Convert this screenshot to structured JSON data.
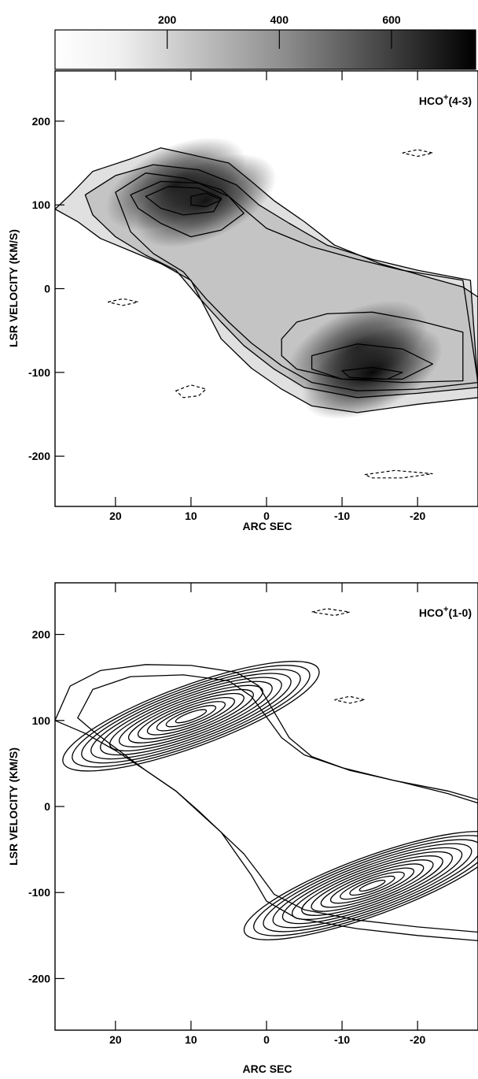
{
  "colorbar": {
    "ticks": [
      200,
      400,
      600
    ],
    "range": [
      0,
      750
    ],
    "gradient": "white-to-black"
  },
  "chart_data": [
    {
      "type": "heatmap",
      "panel": "top",
      "label": "HCO+(4-3)",
      "label_main": "HCO",
      "label_sup": "+",
      "label_trans": "(4-3)",
      "xlabel": "ARC SEC",
      "ylabel": "LSR VELOCITY (KM/S)",
      "xlim": [
        28,
        -28
      ],
      "ylim": [
        -260,
        260
      ],
      "xticks": [
        20,
        10,
        0,
        -10,
        -20
      ],
      "yticks": [
        200,
        100,
        0,
        -100,
        -200
      ],
      "greyscale": true,
      "emission_peaks": [
        {
          "x": 8,
          "y": 105,
          "level": 700
        },
        {
          "x": 12,
          "y": 125,
          "level": 650
        },
        {
          "x": -14,
          "y": -100,
          "level": 750
        },
        {
          "x": -12,
          "y": -70,
          "level": 600
        }
      ],
      "contours": [
        {
          "level": 1,
          "points": [
            [
              26,
              112
            ],
            [
              23,
              140
            ],
            [
              18,
              155
            ],
            [
              14,
              168
            ],
            [
              10,
              160
            ],
            [
              5,
              150
            ],
            [
              2,
              128
            ],
            [
              -1,
              105
            ],
            [
              -5,
              80
            ],
            [
              -9,
              52
            ],
            [
              -15,
              30
            ],
            [
              -22,
              12
            ],
            [
              -26,
              2
            ],
            [
              -28,
              -10
            ],
            [
              -28,
              -130
            ],
            [
              -20,
              -138
            ],
            [
              -12,
              -148
            ],
            [
              -6,
              -140
            ],
            [
              -2,
              -120
            ],
            [
              2,
              -95
            ],
            [
              6,
              -60
            ],
            [
              8,
              -25
            ],
            [
              10,
              10
            ],
            [
              14,
              30
            ],
            [
              18,
              45
            ],
            [
              22,
              60
            ],
            [
              25,
              80
            ],
            [
              28,
              95
            ]
          ]
        },
        {
          "level": 2,
          "points": [
            [
              24,
              112
            ],
            [
              20,
              135
            ],
            [
              15,
              148
            ],
            [
              9,
              142
            ],
            [
              4,
              124
            ],
            [
              1,
              100
            ],
            [
              -3,
              78
            ],
            [
              -8,
              52
            ],
            [
              -14,
              35
            ],
            [
              -20,
              22
            ],
            [
              -27,
              10
            ],
            [
              -28,
              -118
            ],
            [
              -20,
              -125
            ],
            [
              -12,
              -130
            ],
            [
              -5,
              -118
            ],
            [
              -1,
              -96
            ],
            [
              3,
              -68
            ],
            [
              6,
              -40
            ],
            [
              9,
              -10
            ],
            [
              12,
              22
            ],
            [
              16,
              40
            ],
            [
              20,
              62
            ],
            [
              23,
              88
            ]
          ]
        },
        {
          "level": 3,
          "points": [
            [
              20,
              115
            ],
            [
              16,
              138
            ],
            [
              11,
              132
            ],
            [
              6,
              118
            ],
            [
              3,
              95
            ],
            [
              0,
              72
            ],
            [
              -6,
              50
            ],
            [
              -12,
              35
            ],
            [
              -18,
              22
            ],
            [
              -26,
              10
            ],
            [
              -28,
              -112
            ],
            [
              -20,
              -120
            ],
            [
              -12,
              -122
            ],
            [
              -6,
              -112
            ],
            [
              -2,
              -92
            ],
            [
              2,
              -65
            ],
            [
              5,
              -40
            ],
            [
              8,
              -12
            ],
            [
              11,
              20
            ],
            [
              15,
              42
            ],
            [
              18,
              68
            ]
          ]
        },
        {
          "level": 4,
          "points": [
            [
              18,
              112
            ],
            [
              14,
              128
            ],
            [
              9,
              126
            ],
            [
              5,
              110
            ],
            [
              3,
              90
            ],
            [
              6,
              70
            ],
            [
              10,
              62
            ],
            [
              14,
              78
            ],
            [
              17,
              96
            ]
          ]
        },
        {
          "level": 4,
          "points": [
            [
              -4,
              -40
            ],
            [
              -8,
              -30
            ],
            [
              -14,
              -28
            ],
            [
              -20,
              -38
            ],
            [
              -26,
              -52
            ],
            [
              -26,
              -110
            ],
            [
              -18,
              -112
            ],
            [
              -10,
              -108
            ],
            [
              -4,
              -96
            ],
            [
              -2,
              -80
            ],
            [
              -2,
              -60
            ]
          ]
        },
        {
          "level": 5,
          "points": [
            [
              16,
              110
            ],
            [
              13,
              122
            ],
            [
              9,
              120
            ],
            [
              6,
              108
            ],
            [
              7,
              92
            ],
            [
              11,
              88
            ],
            [
              14,
              96
            ]
          ]
        },
        {
          "level": 5,
          "points": [
            [
              -6,
              -80
            ],
            [
              -12,
              -66
            ],
            [
              -18,
              -72
            ],
            [
              -22,
              -90
            ],
            [
              -18,
              -108
            ],
            [
              -10,
              -108
            ],
            [
              -6,
              -96
            ]
          ]
        },
        {
          "level": 6,
          "points": [
            [
              10,
              110
            ],
            [
              8,
              114
            ],
            [
              6,
              106
            ],
            [
              8,
              98
            ],
            [
              10,
              100
            ]
          ]
        },
        {
          "level": 6,
          "points": [
            [
              -10,
              -98
            ],
            [
              -14,
              -94
            ],
            [
              -18,
              -100
            ],
            [
              -16,
              -108
            ],
            [
              -11,
              -106
            ]
          ]
        }
      ],
      "negative_contours": [
        {
          "points": [
            [
              12,
              -122
            ],
            [
              10,
              -115
            ],
            [
              8,
              -120
            ],
            [
              9,
              -128
            ],
            [
              11,
              -130
            ]
          ]
        },
        {
          "points": [
            [
              -13,
              -222
            ],
            [
              -17,
              -217
            ],
            [
              -22,
              -221
            ],
            [
              -18,
              -226
            ],
            [
              -14,
              -226
            ]
          ]
        },
        {
          "points": [
            [
              21,
              -16
            ],
            [
              19,
              -12
            ],
            [
              17,
              -16
            ],
            [
              19,
              -20
            ]
          ]
        },
        {
          "points": [
            [
              -18,
              162
            ],
            [
              -20,
              166
            ],
            [
              -22,
              162
            ],
            [
              -20,
              158
            ]
          ]
        }
      ]
    },
    {
      "type": "heatmap",
      "panel": "bottom",
      "label": "HCO+(1-0)",
      "label_main": "HCO",
      "label_sup": "+",
      "label_trans": "(1-0)",
      "xlabel": "ARC SEC",
      "ylabel": "LSR VELOCITY (KM/S)",
      "xlim": [
        28,
        -28
      ],
      "ylim": [
        -260,
        260
      ],
      "xticks": [
        20,
        10,
        0,
        -10,
        -20
      ],
      "yticks": [
        200,
        100,
        0,
        -100,
        -200
      ],
      "greyscale": false,
      "contour_sets": [
        {
          "center": [
            10,
            105
          ],
          "semi_axes": [
            18,
            65
          ],
          "angle": -20,
          "count": 13,
          "scale_min": 0.12
        },
        {
          "center": [
            -14,
            -92
          ],
          "semi_axes": [
            18,
            62
          ],
          "angle": -20,
          "count": 13,
          "scale_min": 0.1
        }
      ],
      "outer_contours": [
        {
          "points": [
            [
              28,
              100
            ],
            [
              26,
              140
            ],
            [
              22,
              158
            ],
            [
              16,
              165
            ],
            [
              10,
              164
            ],
            [
              4,
              156
            ],
            [
              1,
              140
            ],
            [
              -1,
              110
            ],
            [
              -3,
              80
            ],
            [
              -6,
              58
            ],
            [
              -11,
              42
            ],
            [
              -18,
              28
            ],
            [
              -24,
              15
            ],
            [
              -28,
              4
            ],
            [
              -28,
              -156
            ],
            [
              -20,
              -150
            ],
            [
              -12,
              -142
            ],
            [
              -4,
              -130
            ],
            [
              0,
              -110
            ],
            [
              2,
              -80
            ],
            [
              4,
              -55
            ],
            [
              6,
              -30
            ],
            [
              9,
              -5
            ],
            [
              12,
              18
            ],
            [
              16,
              42
            ],
            [
              20,
              65
            ],
            [
              24,
              85
            ]
          ]
        },
        {
          "points": [
            [
              25,
              103
            ],
            [
              23,
              136
            ],
            [
              18,
              151
            ],
            [
              11,
              153
            ],
            [
              5,
              146
            ],
            [
              2,
              128
            ],
            [
              0,
              104
            ],
            [
              -2,
              80
            ],
            [
              -5,
              60
            ],
            [
              -10,
              45
            ],
            [
              -17,
              30
            ],
            [
              -24,
              18
            ],
            [
              -28,
              8
            ],
            [
              -28,
              -146
            ],
            [
              -20,
              -140
            ],
            [
              -12,
              -132
            ],
            [
              -5,
              -120
            ],
            [
              -1,
              -102
            ],
            [
              1,
              -78
            ],
            [
              3,
              -55
            ],
            [
              6,
              -30
            ],
            [
              9,
              -6
            ],
            [
              12,
              18
            ],
            [
              16,
              42
            ],
            [
              20,
              68
            ],
            [
              23,
              88
            ]
          ]
        }
      ],
      "negative_contours": [
        {
          "points": [
            [
              -6,
              226
            ],
            [
              -8,
              230
            ],
            [
              -11,
              226
            ],
            [
              -9,
              222
            ]
          ]
        },
        {
          "points": [
            [
              -9,
              124
            ],
            [
              -11,
              128
            ],
            [
              -13,
              124
            ],
            [
              -11,
              120
            ]
          ]
        }
      ]
    }
  ]
}
